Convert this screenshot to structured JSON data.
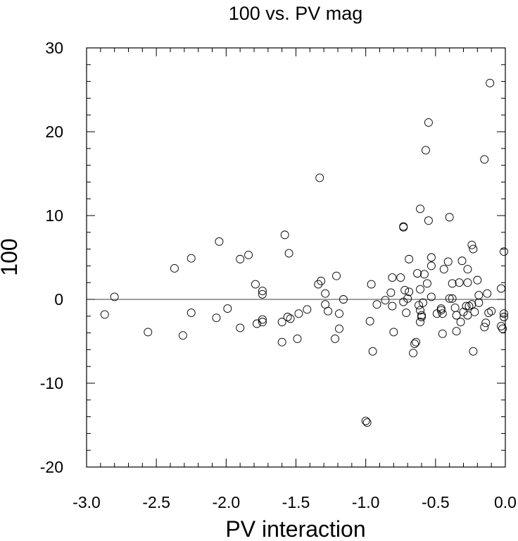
{
  "chart_data": {
    "type": "scatter",
    "title": "100 vs. PV mag",
    "xlabel": "PV interaction",
    "ylabel": "100",
    "xlim": [
      -3.0,
      0.0
    ],
    "ylim": [
      -20,
      30
    ],
    "xticks": [
      -3.0,
      -2.5,
      -2.0,
      -1.5,
      -1.0,
      -0.5,
      0.0
    ],
    "xtick_labels": [
      "-3.0",
      "-2.5",
      "-2.0",
      "-1.5",
      "-1.0",
      "-0.5",
      "0.0"
    ],
    "yticks": [
      -20,
      -10,
      0,
      10,
      20,
      30
    ],
    "ytick_labels": [
      "-20",
      "-10",
      "0",
      "10",
      "20",
      "30"
    ],
    "x_minor_step": 0.1,
    "y_minor_step": 2,
    "reference_line_y": 0,
    "marker": "open-circle",
    "grid": false,
    "colors": {
      "marker": "#000000",
      "axes": "#000000",
      "reference_line": "#000000"
    },
    "points": [
      {
        "x": -2.87,
        "y": -1.8
      },
      {
        "x": -2.8,
        "y": 0.3
      },
      {
        "x": -2.56,
        "y": -3.9
      },
      {
        "x": -2.37,
        "y": 3.7
      },
      {
        "x": -2.31,
        "y": -4.3
      },
      {
        "x": -2.25,
        "y": 4.9
      },
      {
        "x": -2.25,
        "y": -1.6
      },
      {
        "x": -2.05,
        "y": 6.9
      },
      {
        "x": -2.07,
        "y": -2.2
      },
      {
        "x": -1.99,
        "y": -1.1
      },
      {
        "x": -1.9,
        "y": 4.8
      },
      {
        "x": -1.9,
        "y": -3.4
      },
      {
        "x": -1.84,
        "y": 5.3
      },
      {
        "x": -1.79,
        "y": 1.8
      },
      {
        "x": -1.78,
        "y": -2.9
      },
      {
        "x": -1.74,
        "y": 1.0
      },
      {
        "x": -1.74,
        "y": 0.6
      },
      {
        "x": -1.74,
        "y": -2.4
      },
      {
        "x": -1.74,
        "y": -2.7
      },
      {
        "x": -1.58,
        "y": 7.7
      },
      {
        "x": -1.55,
        "y": 5.5
      },
      {
        "x": -1.6,
        "y": -2.7
      },
      {
        "x": -1.56,
        "y": -2.1
      },
      {
        "x": -1.54,
        "y": -2.3
      },
      {
        "x": -1.6,
        "y": -5.1
      },
      {
        "x": -1.48,
        "y": -1.7
      },
      {
        "x": -1.49,
        "y": -4.7
      },
      {
        "x": -1.42,
        "y": -1.2
      },
      {
        "x": -1.33,
        "y": 14.5
      },
      {
        "x": -1.34,
        "y": 1.8
      },
      {
        "x": -1.32,
        "y": 2.2
      },
      {
        "x": -1.29,
        "y": 0.7
      },
      {
        "x": -1.29,
        "y": -0.6
      },
      {
        "x": -1.27,
        "y": -1.4
      },
      {
        "x": -1.21,
        "y": 2.8
      },
      {
        "x": -1.22,
        "y": -4.7
      },
      {
        "x": -1.19,
        "y": -1.7
      },
      {
        "x": -1.19,
        "y": -3.5
      },
      {
        "x": -1.16,
        "y": 0.0
      },
      {
        "x": -1.0,
        "y": -14.5
      },
      {
        "x": -0.99,
        "y": -14.7
      },
      {
        "x": -0.96,
        "y": 1.8
      },
      {
        "x": -0.97,
        "y": -2.6
      },
      {
        "x": -0.95,
        "y": -6.2
      },
      {
        "x": -0.92,
        "y": -0.6
      },
      {
        "x": -0.86,
        "y": -0.1
      },
      {
        "x": -0.81,
        "y": 2.6
      },
      {
        "x": -0.82,
        "y": 0.8
      },
      {
        "x": -0.81,
        "y": -0.8
      },
      {
        "x": -0.8,
        "y": -3.9
      },
      {
        "x": -0.75,
        "y": 2.6
      },
      {
        "x": -0.73,
        "y": 8.7
      },
      {
        "x": -0.73,
        "y": 8.6
      },
      {
        "x": -0.72,
        "y": 1.1
      },
      {
        "x": -0.73,
        "y": -0.3
      },
      {
        "x": -0.71,
        "y": -1.6
      },
      {
        "x": -0.69,
        "y": 4.8
      },
      {
        "x": -0.69,
        "y": 0.9
      },
      {
        "x": -0.7,
        "y": 0.1
      },
      {
        "x": -0.66,
        "y": -6.4
      },
      {
        "x": -0.65,
        "y": -5.3
      },
      {
        "x": -0.64,
        "y": -5.1
      },
      {
        "x": -0.63,
        "y": 3.1
      },
      {
        "x": -0.61,
        "y": 10.8
      },
      {
        "x": -0.61,
        "y": 1.2
      },
      {
        "x": -0.62,
        "y": -0.7
      },
      {
        "x": -0.61,
        "y": -1.3
      },
      {
        "x": -0.6,
        "y": -1.9
      },
      {
        "x": -0.6,
        "y": -2.1
      },
      {
        "x": -0.61,
        "y": -2.7
      },
      {
        "x": -0.59,
        "y": -0.4
      },
      {
        "x": -0.57,
        "y": 17.8
      },
      {
        "x": -0.55,
        "y": 21.1
      },
      {
        "x": -0.55,
        "y": 9.4
      },
      {
        "x": -0.58,
        "y": 3.0
      },
      {
        "x": -0.56,
        "y": 1.9
      },
      {
        "x": -0.53,
        "y": 5.0
      },
      {
        "x": -0.53,
        "y": 4.0
      },
      {
        "x": -0.53,
        "y": 0.3
      },
      {
        "x": -0.49,
        "y": -1.7
      },
      {
        "x": -0.46,
        "y": -1.1
      },
      {
        "x": -0.46,
        "y": -1.3
      },
      {
        "x": -0.45,
        "y": -1.7
      },
      {
        "x": -0.45,
        "y": -4.1
      },
      {
        "x": -0.44,
        "y": 3.6
      },
      {
        "x": -0.41,
        "y": 4.5
      },
      {
        "x": -0.4,
        "y": 9.8
      },
      {
        "x": -0.4,
        "y": 0.1
      },
      {
        "x": -0.38,
        "y": 1.9
      },
      {
        "x": -0.38,
        "y": 0.1
      },
      {
        "x": -0.36,
        "y": -1.0
      },
      {
        "x": -0.35,
        "y": -1.9
      },
      {
        "x": -0.35,
        "y": -3.8
      },
      {
        "x": -0.33,
        "y": 2.0
      },
      {
        "x": -0.32,
        "y": -2.7
      },
      {
        "x": -0.31,
        "y": 4.6
      },
      {
        "x": -0.3,
        "y": -1.5
      },
      {
        "x": -0.28,
        "y": -0.8
      },
      {
        "x": -0.27,
        "y": 3.6
      },
      {
        "x": -0.27,
        "y": 2.0
      },
      {
        "x": -0.27,
        "y": -1.9
      },
      {
        "x": -0.26,
        "y": -0.8
      },
      {
        "x": -0.24,
        "y": 6.5
      },
      {
        "x": -0.23,
        "y": 6.0
      },
      {
        "x": -0.24,
        "y": -0.6
      },
      {
        "x": -0.23,
        "y": -6.2
      },
      {
        "x": -0.22,
        "y": -1.5
      },
      {
        "x": -0.2,
        "y": 2.3
      },
      {
        "x": -0.19,
        "y": 0.5
      },
      {
        "x": -0.19,
        "y": -0.4
      },
      {
        "x": -0.11,
        "y": 25.8
      },
      {
        "x": -0.15,
        "y": 16.7
      },
      {
        "x": -0.15,
        "y": -3.3
      },
      {
        "x": -0.14,
        "y": -2.8
      },
      {
        "x": -0.13,
        "y": 0.7
      },
      {
        "x": -0.12,
        "y": -1.6
      },
      {
        "x": -0.1,
        "y": -1.4
      },
      {
        "x": -0.03,
        "y": 1.3
      },
      {
        "x": -0.03,
        "y": -3.2
      },
      {
        "x": -0.02,
        "y": -3.5
      },
      {
        "x": -0.01,
        "y": 5.7
      },
      {
        "x": -0.01,
        "y": -1.7
      },
      {
        "x": -0.01,
        "y": -2.1
      }
    ]
  }
}
